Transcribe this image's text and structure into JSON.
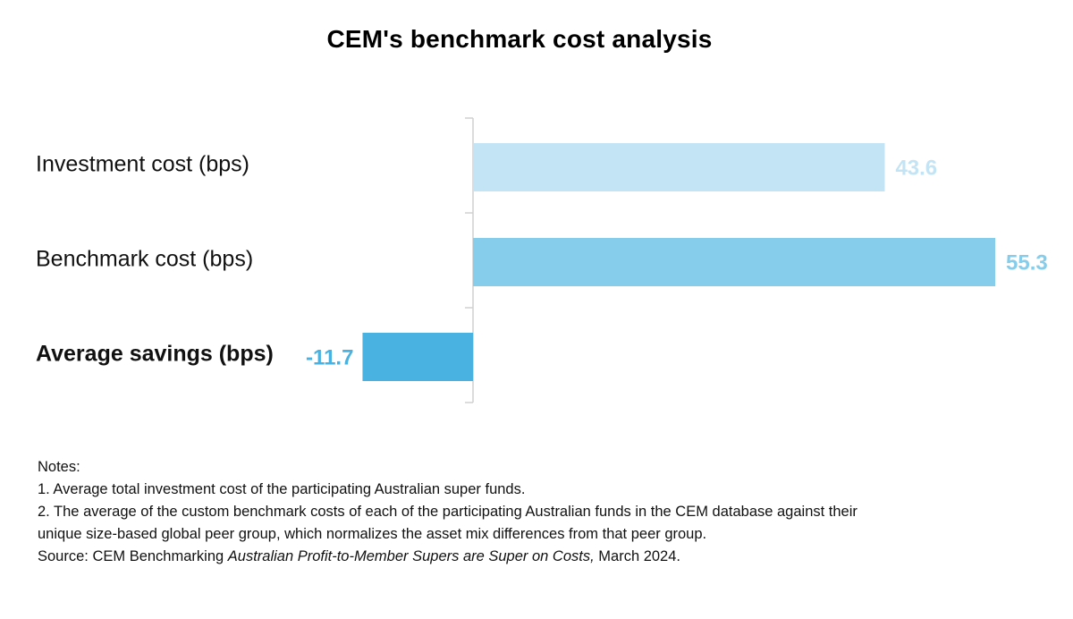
{
  "chart_data": {
    "type": "bar",
    "orientation": "horizontal",
    "title": "CEM's benchmark cost analysis",
    "categories": [
      "Investment cost (bps)",
      "Benchmark cost (bps)",
      "Average savings (bps)"
    ],
    "values": [
      43.6,
      55.3,
      -11.7
    ],
    "value_labels": [
      "43.6",
      "55.3",
      "-11.7"
    ],
    "bar_colors": [
      "#c3e4f4",
      "#85cdeb",
      "#49b2e0"
    ],
    "label_colors": [
      "#c3e4f4",
      "#85cdeb",
      "#49b2e0"
    ],
    "bold_categories": [
      false,
      false,
      true
    ],
    "xlim": [
      -11.7,
      55.3
    ],
    "xlabel": "",
    "ylabel": "",
    "grid": false,
    "legend": "none"
  },
  "notes": {
    "heading": "Notes:",
    "note1": "1. Average total investment cost of the participating Australian super funds.",
    "note2_line1": "2. The average of the custom benchmark costs of each of the participating Australian funds in the CEM database against their",
    "note2_line2": "unique size-based global peer group, which normalizes the asset mix differences from that peer group.",
    "source_prefix": "Source: CEM Benchmarking ",
    "source_title": "Australian Profit-to-Member Supers are Super on Costs,",
    "source_suffix": " March 2024."
  },
  "colors": {
    "axis": "#d0d0d0"
  }
}
